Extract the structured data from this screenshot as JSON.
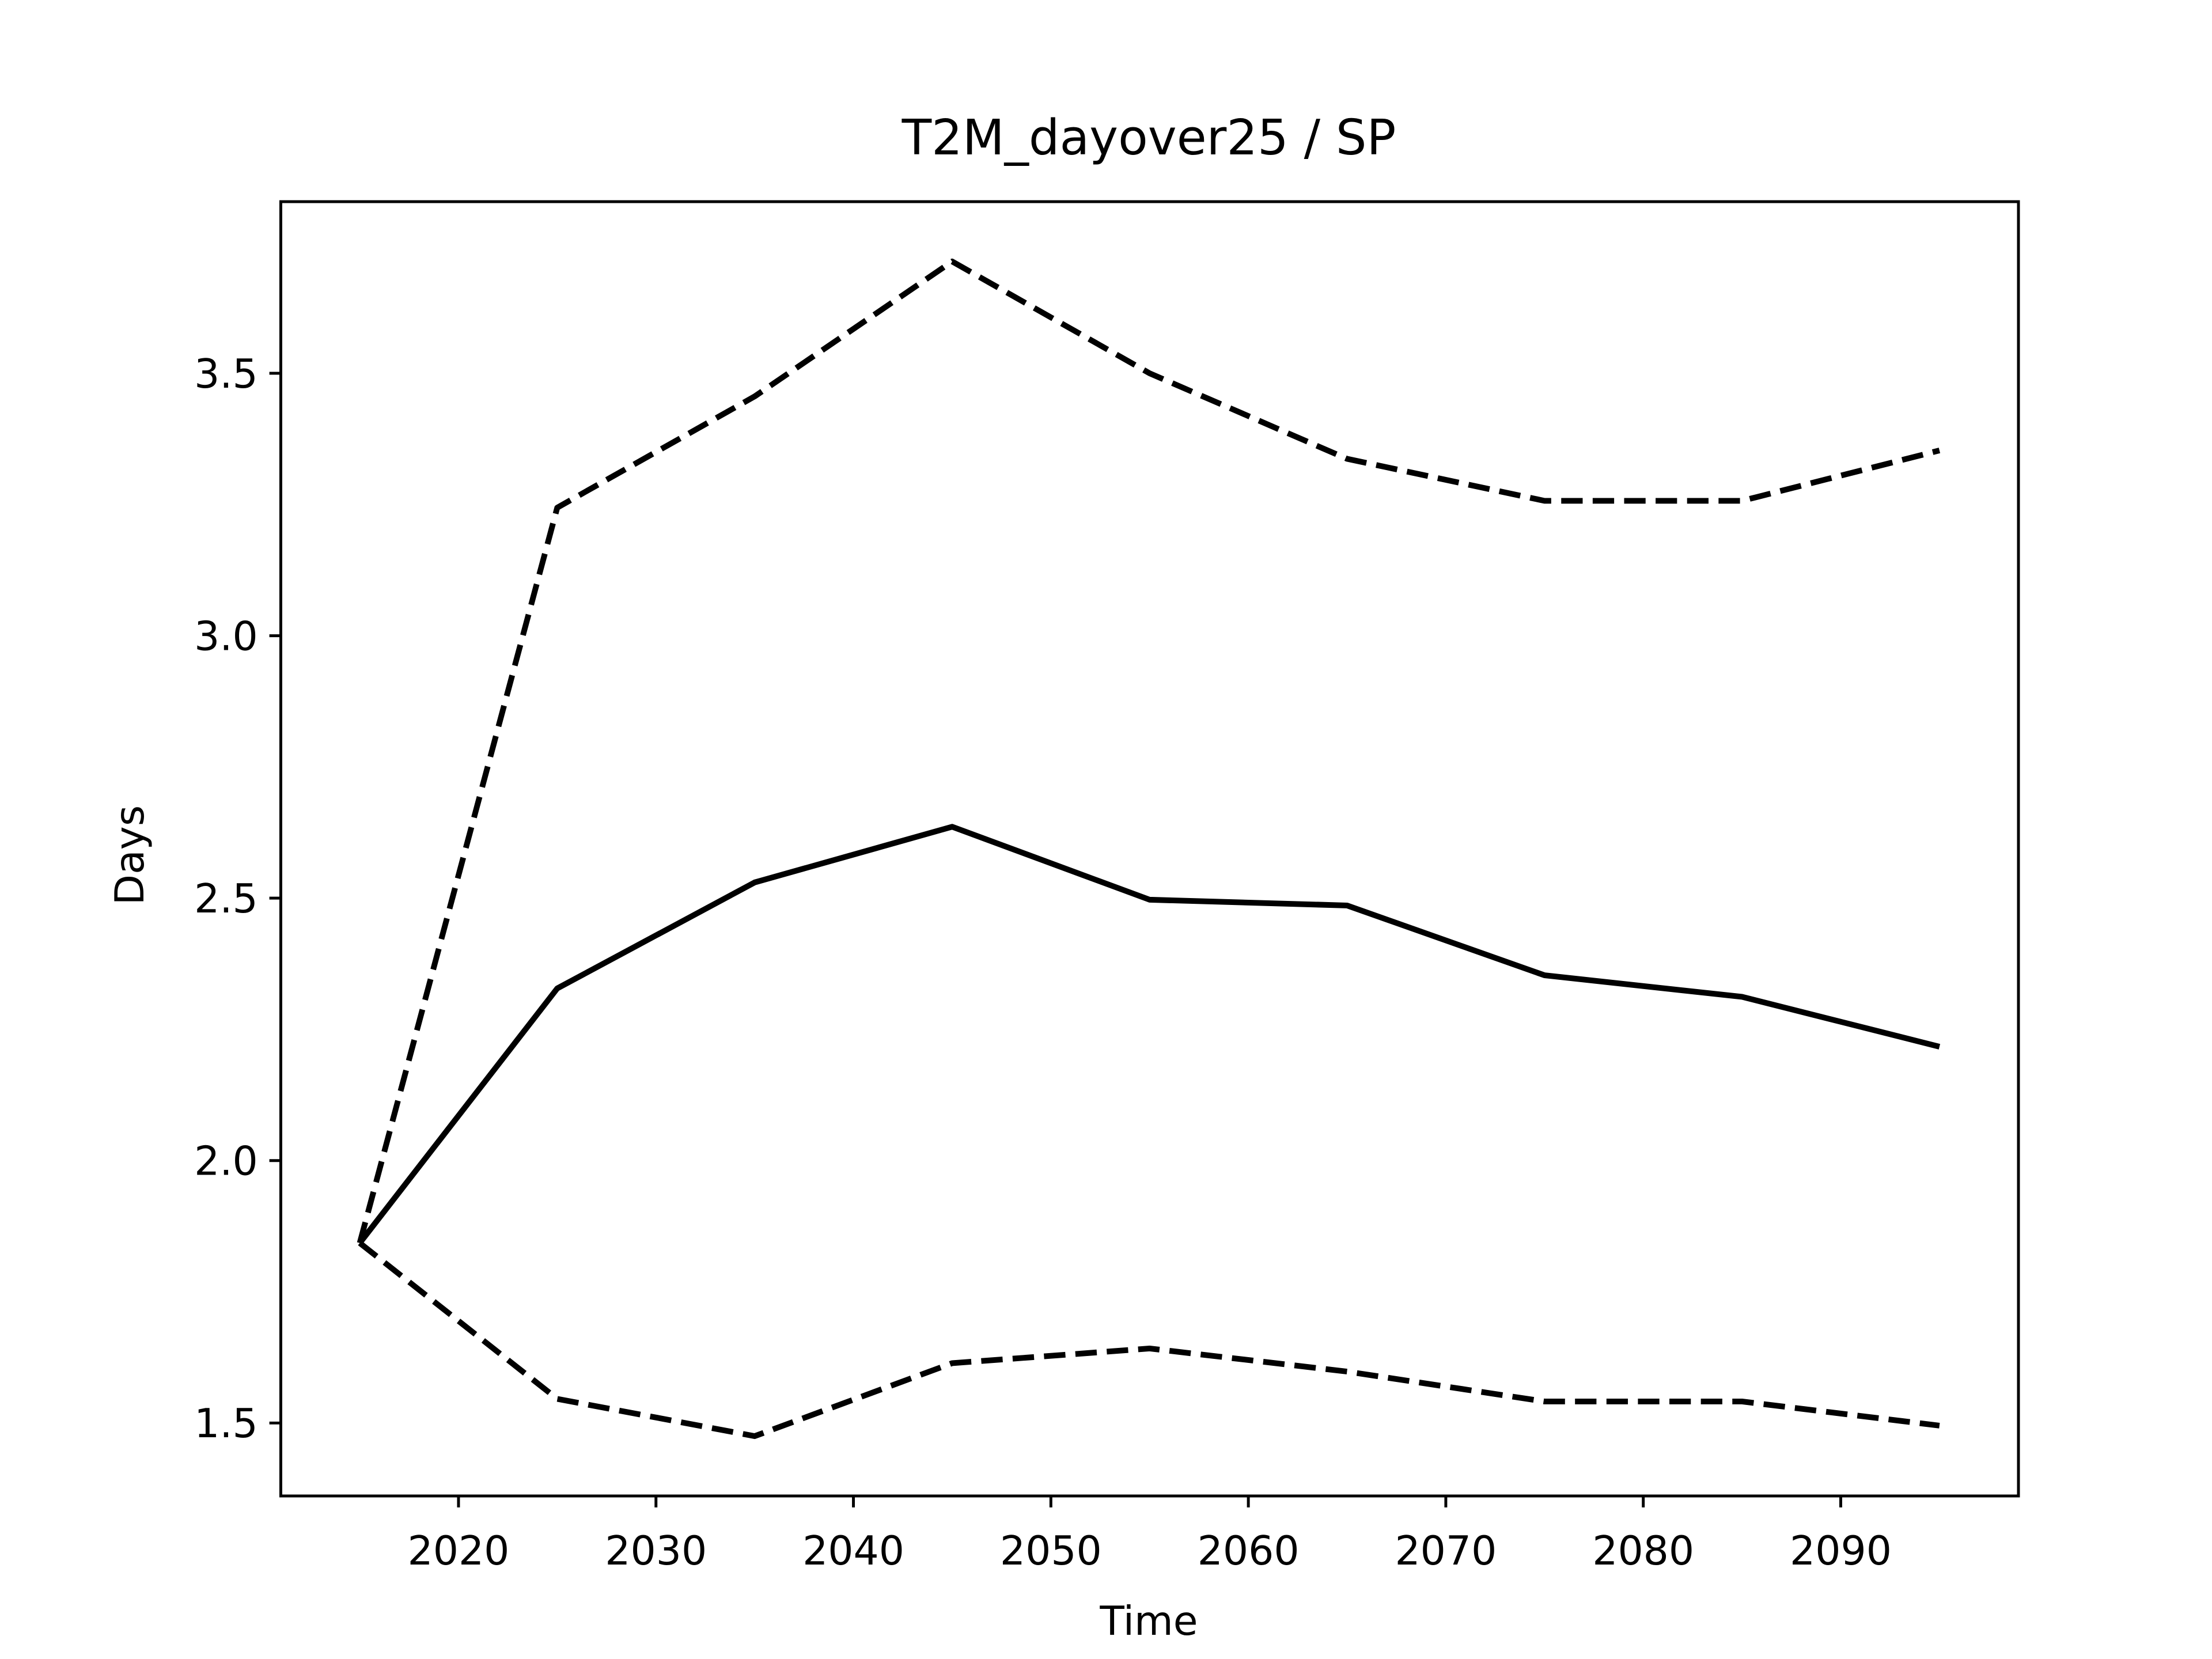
{
  "chart_data": {
    "type": "line",
    "title": "T2M_dayover25 / SP",
    "xlabel": "Time",
    "ylabel": "Days",
    "x": [
      2015,
      2025,
      2035,
      2045,
      2055,
      2065,
      2075,
      2085,
      2095
    ],
    "series": [
      {
        "color": "#000000",
        "linestyle": "solid",
        "values": [
          1.843,
          2.328,
          2.53,
          2.636,
          2.497,
          2.486,
          2.353,
          2.312,
          2.217
        ]
      },
      {
        "color": "#000000",
        "linestyle": "dashed",
        "values": [
          1.843,
          3.244,
          3.456,
          3.713,
          3.5,
          3.337,
          3.257,
          3.257,
          3.353
        ]
      },
      {
        "color": "#000000",
        "linestyle": "dashed",
        "values": [
          1.843,
          1.546,
          1.475,
          1.614,
          1.642,
          1.598,
          1.541,
          1.541,
          1.495
        ]
      }
    ],
    "xlim": [
      2011,
      2099
    ],
    "xticks": [
      2020,
      2030,
      2040,
      2050,
      2060,
      2070,
      2080,
      2090
    ],
    "ylim": [
      1.361,
      3.827
    ],
    "yticks": [
      1.5,
      {
        "value": 2,
        "label": "2.0"
      },
      2.5,
      {
        "value": 3,
        "label": "3.0"
      },
      3.5
    ],
    "grid": false
  }
}
